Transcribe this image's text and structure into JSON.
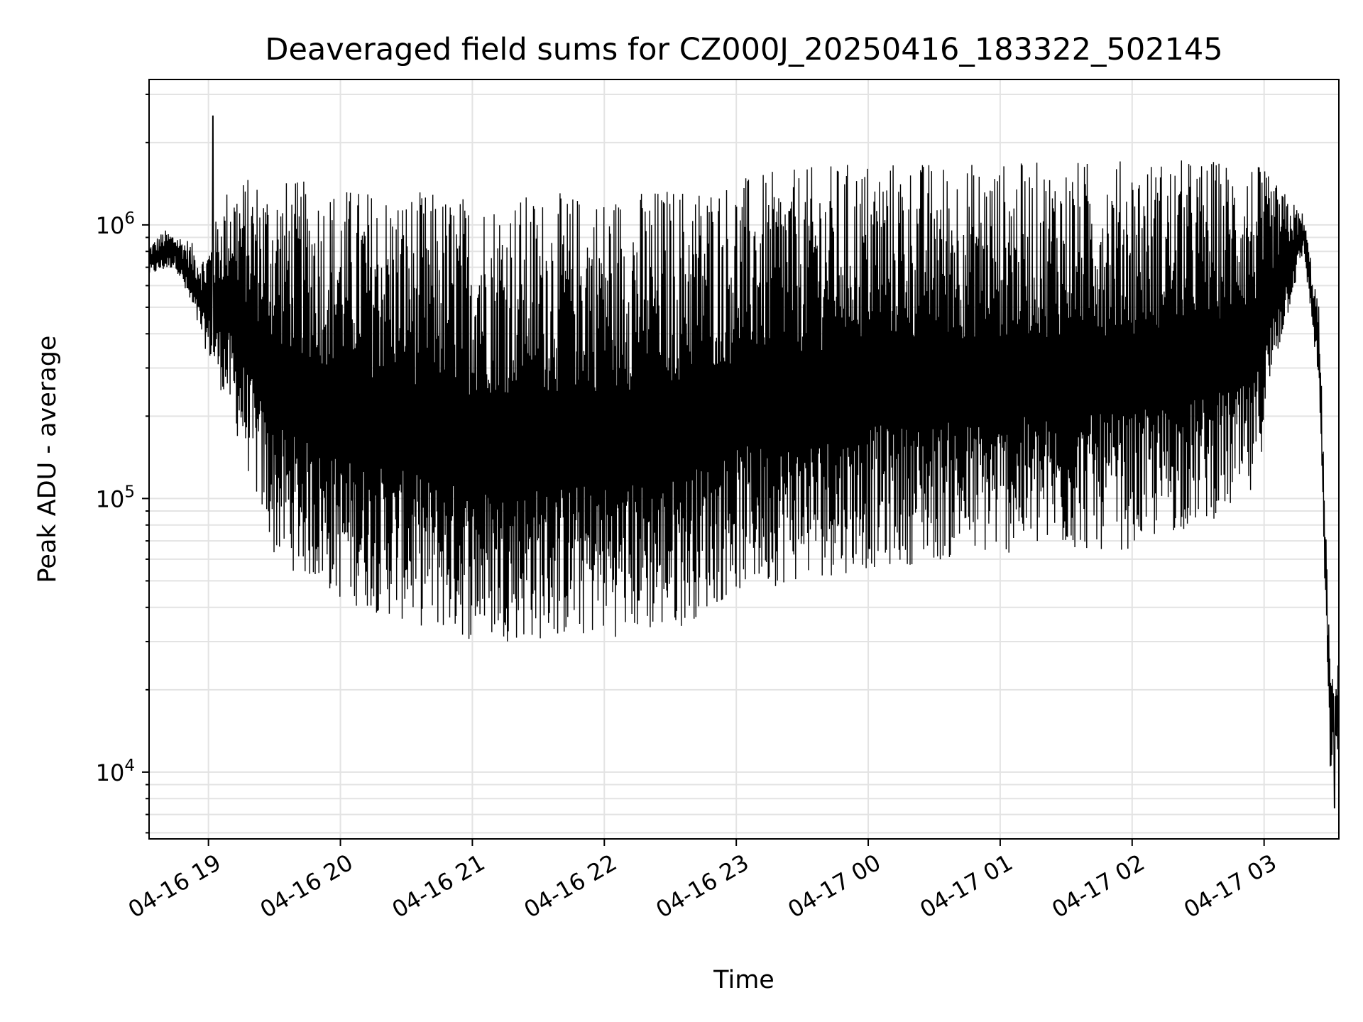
{
  "chart_data": {
    "type": "line",
    "title": "Deaveraged field sums for CZ000J_20250416_183322_502145",
    "xlabel": "Time",
    "ylabel": "Peak ADU - average",
    "yscale": "log",
    "grid": true,
    "legend": "none",
    "line_color": "#000000",
    "xlim": [
      "2025-04-16T18:33",
      "2025-04-17T03:34"
    ],
    "ylim": [
      5700,
      3400000
    ],
    "x_ticks": [
      "04-16 19",
      "04-16 20",
      "04-16 21",
      "04-16 22",
      "04-16 23",
      "04-17 00",
      "04-17 01",
      "04-17 02",
      "04-17 03"
    ],
    "y_ticks": [
      {
        "base": "10",
        "exp": "4"
      },
      {
        "base": "10",
        "exp": "5"
      },
      {
        "base": "10",
        "exp": "6"
      }
    ],
    "series": [
      {
        "envelope_upper": [
          {
            "t": "2025-04-16T18:33",
            "v": 850000
          },
          {
            "t": "2025-04-16T18:40",
            "v": 960000
          },
          {
            "t": "2025-04-16T18:50",
            "v": 900000
          },
          {
            "t": "2025-04-16T18:58",
            "v": 780000
          },
          {
            "t": "2025-04-16T19:10",
            "v": 1500000
          },
          {
            "t": "2025-04-16T19:30",
            "v": 1500000
          },
          {
            "t": "2025-04-16T20:00",
            "v": 1400000
          },
          {
            "t": "2025-04-16T21:00",
            "v": 1300000
          },
          {
            "t": "2025-04-16T22:00",
            "v": 1320000
          },
          {
            "t": "2025-04-16T23:00",
            "v": 1500000
          },
          {
            "t": "2025-04-17T00:00",
            "v": 1750000
          },
          {
            "t": "2025-04-17T01:00",
            "v": 1700000
          },
          {
            "t": "2025-04-17T02:00",
            "v": 1750000
          },
          {
            "t": "2025-04-17T02:55",
            "v": 1750000
          },
          {
            "t": "2025-04-17T03:10",
            "v": 1300000
          },
          {
            "t": "2025-04-17T03:18",
            "v": 1100000
          },
          {
            "t": "2025-04-17T03:25",
            "v": 500000
          },
          {
            "t": "2025-04-17T03:30",
            "v": 25000
          },
          {
            "t": "2025-04-17T03:34",
            "v": 28000
          }
        ],
        "envelope_lower": [
          {
            "t": "2025-04-16T18:33",
            "v": 650000
          },
          {
            "t": "2025-04-16T18:45",
            "v": 700000
          },
          {
            "t": "2025-04-16T18:55",
            "v": 420000
          },
          {
            "t": "2025-04-16T19:10",
            "v": 200000
          },
          {
            "t": "2025-04-16T19:30",
            "v": 60000
          },
          {
            "t": "2025-04-16T20:00",
            "v": 42000
          },
          {
            "t": "2025-04-16T20:30",
            "v": 35000
          },
          {
            "t": "2025-04-16T21:00",
            "v": 30000
          },
          {
            "t": "2025-04-16T21:30",
            "v": 30000
          },
          {
            "t": "2025-04-16T22:00",
            "v": 31000
          },
          {
            "t": "2025-04-16T22:30",
            "v": 32000
          },
          {
            "t": "2025-04-16T23:00",
            "v": 45000
          },
          {
            "t": "2025-04-17T00:00",
            "v": 55000
          },
          {
            "t": "2025-04-17T01:00",
            "v": 62000
          },
          {
            "t": "2025-04-17T02:00",
            "v": 65000
          },
          {
            "t": "2025-04-17T02:55",
            "v": 95000
          },
          {
            "t": "2025-04-17T03:05",
            "v": 300000
          },
          {
            "t": "2025-04-17T03:18",
            "v": 800000
          },
          {
            "t": "2025-04-17T03:25",
            "v": 250000
          },
          {
            "t": "2025-04-17T03:30",
            "v": 10000
          },
          {
            "t": "2025-04-17T03:34",
            "v": 12000
          }
        ],
        "min_point": {
          "t": "2025-04-17T03:32",
          "v": 7400
        },
        "max_spike": {
          "t": "2025-04-16T19:02",
          "v": 2500000
        }
      }
    ]
  }
}
